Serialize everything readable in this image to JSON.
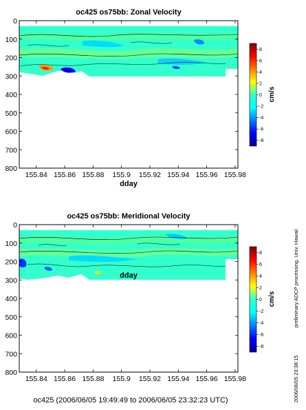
{
  "chart_data": [
    {
      "type": "heatmap",
      "title": "oc425 os75bb: Zonal Velocity",
      "xlabel": "dday",
      "ylabel": "",
      "xlim": [
        155.828,
        155.982
      ],
      "ylim": [
        800,
        0
      ],
      "x_ticks": [
        "155.84",
        "155.86",
        "155.88",
        "155.9",
        "155.92",
        "155.94",
        "155.96",
        "155.98"
      ],
      "y_ticks": [
        "0",
        "100",
        "200",
        "300",
        "400",
        "500",
        "600",
        "700",
        "800"
      ],
      "data_extent": {
        "x": [
          155.828,
          155.98
        ],
        "depth": [
          30,
          300
        ]
      },
      "colorbar": {
        "label": "cm/s",
        "range": [
          -9,
          9
        ],
        "ticks": [
          "8",
          "6",
          "4",
          "2",
          "0",
          "-2",
          "-4",
          "-6",
          "-8"
        ]
      },
      "grid": false
    },
    {
      "type": "heatmap",
      "title": "oc425 os75bb: Meridional Velocity",
      "xlabel": "dday",
      "ylabel": "",
      "xlim": [
        155.828,
        155.982
      ],
      "ylim": [
        800,
        0
      ],
      "x_ticks": [
        "155.84",
        "155.86",
        "155.88",
        "155.9",
        "155.92",
        "155.94",
        "155.96",
        "155.98"
      ],
      "y_ticks": [
        "0",
        "100",
        "200",
        "300",
        "400",
        "500",
        "600",
        "700",
        "800"
      ],
      "data_extent": {
        "x": [
          155.828,
          155.98
        ],
        "depth": [
          30,
          300
        ]
      },
      "colorbar": {
        "label": "cm/s",
        "range": [
          -9,
          9
        ],
        "ticks": [
          "8",
          "6",
          "4",
          "2",
          "0",
          "-2",
          "-4",
          "-6",
          "-8"
        ]
      },
      "grid": false
    }
  ],
  "footer": "oc425 (2006/06/05 19:49:49 to 2006/06/05 23:32:23 UTC)",
  "side_note": "preliminary ADCP processing,   Univ. Hawaii",
  "timestamp": "2006/06/05 23:38:15",
  "colors": {
    "jet_low": "#00008f",
    "jet_mid": "#00ffff",
    "jet_high": "#800000",
    "patch_main": "#33ffcc",
    "patch_band": "#66ff99"
  }
}
